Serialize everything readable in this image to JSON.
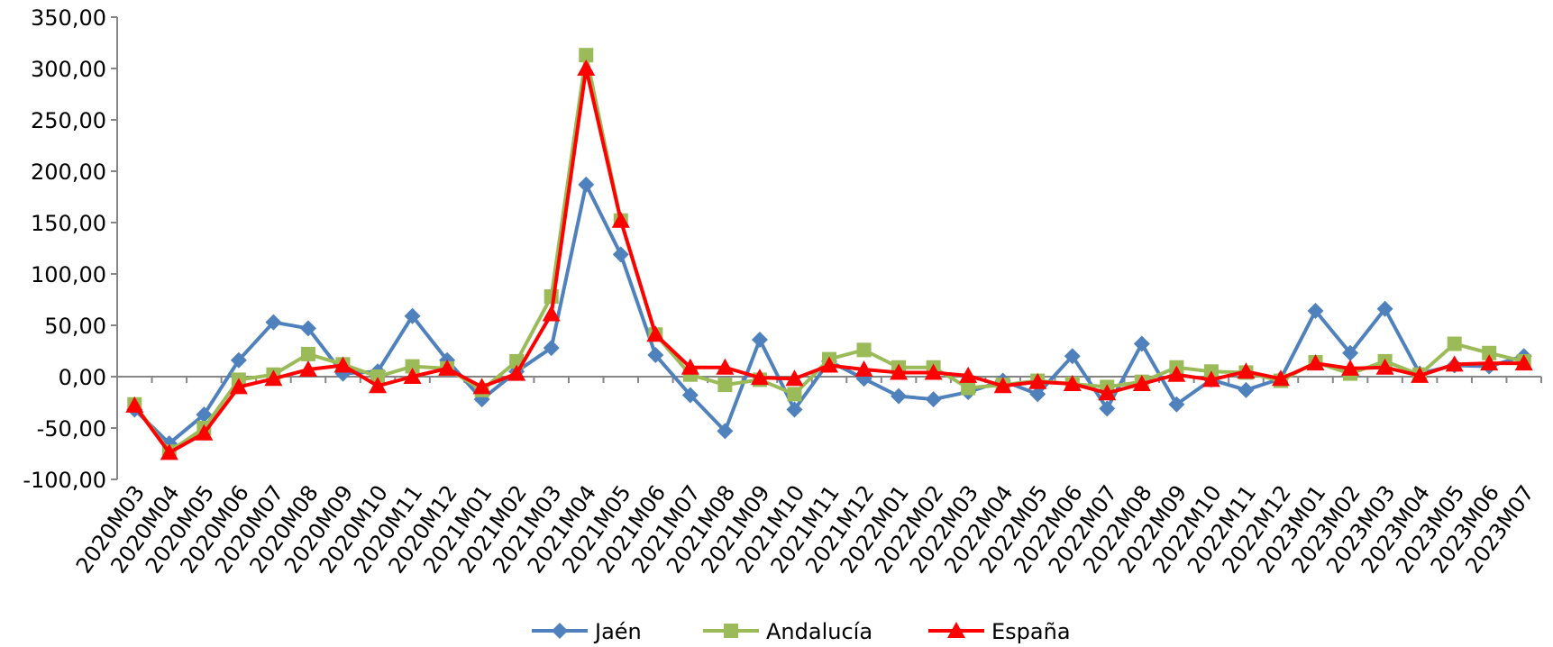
{
  "chart_data": {
    "type": "line",
    "title": "",
    "xlabel": "",
    "ylabel": "",
    "ylim": [
      -100,
      350
    ],
    "y_ticks": [
      "350,00",
      "300,00",
      "250,00",
      "200,00",
      "150,00",
      "100,00",
      "50,00",
      "0,00",
      "-50,00",
      "-100,00"
    ],
    "grid": false,
    "legend_position": "bottom",
    "categories": [
      "2020M03",
      "2020M04",
      "2020M05",
      "2020M06",
      "2020M07",
      "2020M08",
      "2020M09",
      "2020M10",
      "2020M11",
      "2020M12",
      "2021M01",
      "2021M02",
      "2021M03",
      "2021M04",
      "2021M05",
      "2021M06",
      "2021M07",
      "2021M08",
      "2021M09",
      "2021M10",
      "2021M11",
      "2021M12",
      "2022M01",
      "2022M02",
      "2022M03",
      "2022M04",
      "2022M05",
      "2022M06",
      "2022M07",
      "2022M08",
      "2022M09",
      "2022M10",
      "2022M11",
      "2022M12",
      "2023M01",
      "2023M02",
      "2023M03",
      "2023M04",
      "2023M05",
      "2023M06",
      "2023M07"
    ],
    "series": [
      {
        "name": "Jaén",
        "color": "#4F81BD",
        "marker": "diamond",
        "values": [
          -32,
          -65,
          -37,
          16,
          53,
          47,
          3,
          5,
          59,
          16,
          -22,
          5,
          28,
          187,
          119,
          21,
          -18,
          -53,
          36,
          -32,
          15,
          -2,
          -19,
          -22,
          -15,
          -4,
          -17,
          20,
          -31,
          32,
          -27,
          -3,
          -13,
          -2,
          64,
          23,
          66,
          3,
          11,
          10,
          20
        ]
      },
      {
        "name": "Andalucía",
        "color": "#9BBB59",
        "marker": "square",
        "values": [
          -27,
          -73,
          -50,
          -3,
          2,
          22,
          12,
          0,
          10,
          8,
          -13,
          15,
          78,
          313,
          152,
          41,
          2,
          -8,
          -3,
          -17,
          17,
          26,
          9,
          9,
          -11,
          -8,
          -4,
          -7,
          -10,
          -5,
          9,
          5,
          4,
          -4,
          14,
          3,
          15,
          2,
          32,
          23,
          15
        ]
      },
      {
        "name": "España",
        "color": "#FF0000",
        "marker": "triangle",
        "values": [
          -28,
          -74,
          -55,
          -10,
          -2,
          7,
          11,
          -9,
          0,
          8,
          -10,
          3,
          61,
          300,
          152,
          41,
          9,
          9,
          -1,
          -2,
          11,
          7,
          4,
          4,
          1,
          -9,
          -5,
          -7,
          -16,
          -7,
          2,
          -3,
          5,
          -2,
          13,
          8,
          9,
          1,
          12,
          13,
          13
        ]
      }
    ]
  }
}
